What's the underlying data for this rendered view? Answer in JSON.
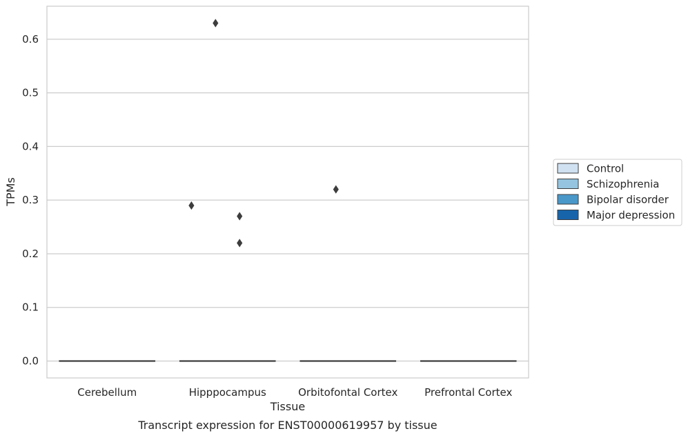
{
  "chart_data": {
    "type": "box",
    "title": "",
    "caption": "Transcript expression for ENST00000619957 by tissue",
    "xlabel": "Tissue",
    "ylabel": "TPMs",
    "categories": [
      "Cerebellum",
      "Hipppocampus",
      "Orbitofontal Cortex",
      "Prefrontal Cortex"
    ],
    "ylim": [
      -0.0315,
      0.6615
    ],
    "yticks": [
      0.0,
      0.1,
      0.2,
      0.3,
      0.4,
      0.5,
      0.6
    ],
    "ytick_labels": [
      "0.0",
      "0.1",
      "0.2",
      "0.3",
      "0.4",
      "0.5",
      "0.6"
    ],
    "grid": "horizontal",
    "legend_position": "center-right-outside",
    "series": [
      {
        "name": "Control",
        "color": "#d0e1f2"
      },
      {
        "name": "Schizophrenia",
        "color": "#94c4df"
      },
      {
        "name": "Bipolar disorder",
        "color": "#4a98c9"
      },
      {
        "name": "Major depression",
        "color": "#1764ab"
      }
    ],
    "boxes": [
      {
        "category": "Cerebellum",
        "median": 0.0,
        "q1": 0.0,
        "q3": 0.0
      },
      {
        "category": "Hipppocampus",
        "median": 0.0,
        "q1": 0.0,
        "q3": 0.0
      },
      {
        "category": "Orbitofontal Cortex",
        "median": 0.0,
        "q1": 0.0,
        "q3": 0.0
      },
      {
        "category": "Prefrontal Cortex",
        "median": 0.0,
        "q1": 0.0,
        "q3": 0.0
      }
    ],
    "outliers": [
      {
        "category": "Hipppocampus",
        "series": "Schizophrenia",
        "value": 0.63
      },
      {
        "category": "Hipppocampus",
        "series": "Control",
        "value": 0.29
      },
      {
        "category": "Hipppocampus",
        "series": "Bipolar disorder",
        "value": 0.27
      },
      {
        "category": "Hipppocampus",
        "series": "Bipolar disorder",
        "value": 0.22
      },
      {
        "category": "Orbitofontal Cortex",
        "series": "Schizophrenia",
        "value": 0.32
      }
    ]
  }
}
